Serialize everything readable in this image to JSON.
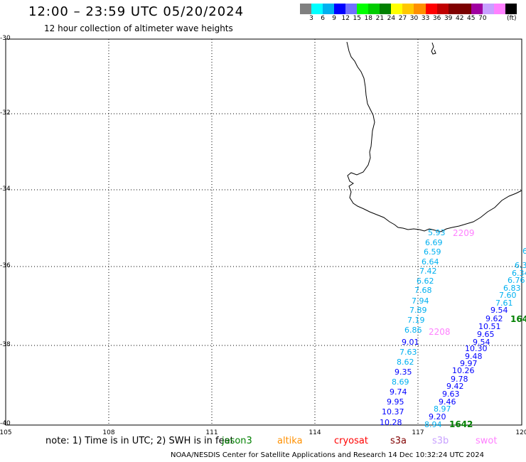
{
  "header": {
    "title": "12:00 – 23:59 UTC 05/20/2024",
    "subtitle": "12 hour collection of altimeter wave heights"
  },
  "colorbar": {
    "colors": [
      "#808080",
      "#00ffff",
      "#00b0f0",
      "#0000ff",
      "#7070ff",
      "#00ff00",
      "#00cc00",
      "#008000",
      "#ffff00",
      "#ffc800",
      "#ff9000",
      "#ff0000",
      "#c00000",
      "#800000",
      "#7a0000",
      "#a000a0",
      "#c8a0ff",
      "#ff80ff",
      "#000000"
    ],
    "ticks": [
      "3",
      "6",
      "9",
      "12",
      "15",
      "18",
      "21",
      "24",
      "27",
      "30",
      "33",
      "36",
      "39",
      "42",
      "45",
      "70"
    ],
    "unit": "(ft)"
  },
  "axes": {
    "lat_labels": [
      "-30",
      "-32",
      "-34",
      "-36",
      "-38",
      "-40"
    ],
    "lon_labels": [
      "105",
      "108",
      "111",
      "114",
      "117",
      "120"
    ]
  },
  "tracks": {
    "time_labels": [
      {
        "text": "2209",
        "color": "#ff80ff"
      },
      {
        "text": "2208",
        "color": "#ff80ff"
      },
      {
        "text": "1642",
        "color": "#008000"
      },
      {
        "text": "164",
        "color": "#008000"
      }
    ],
    "track_a": {
      "values": [
        "5.93",
        "6.69",
        "6.59",
        "6.64",
        "7.42",
        "6.62",
        "7.68",
        "7.94",
        "7.89",
        "7.19",
        "6.86",
        "9.01",
        "7.63",
        "8.62",
        "9.35",
        "8.69",
        "9.74",
        "9.95",
        "10.37",
        "10.28"
      ],
      "colors": [
        "#00b0f0",
        "#00b0f0",
        "#00b0f0",
        "#00b0f0",
        "#00b0f0",
        "#00b0f0",
        "#00b0f0",
        "#00b0f0",
        "#00b0f0",
        "#00b0f0",
        "#00b0f0",
        "#0000ff",
        "#00b0f0",
        "#00b0f0",
        "#0000ff",
        "#00b0f0",
        "#0000ff",
        "#0000ff",
        "#0000ff",
        "#0000ff"
      ]
    },
    "track_b": {
      "values": [
        "8.94",
        "9.20",
        "8.97",
        "9.46",
        "9.63",
        "9.42",
        "9.78",
        "10.26",
        "9.97",
        "9.48",
        "10.30",
        "9.54",
        "9.65",
        "10.51",
        "9.62",
        "9.54",
        "7.61",
        "7.60",
        "6.83",
        "6.76",
        "6.34",
        "6.3",
        "6"
      ],
      "colors": [
        "#00b0f0",
        "#0000ff",
        "#00b0f0",
        "#0000ff",
        "#0000ff",
        "#0000ff",
        "#0000ff",
        "#0000ff",
        "#0000ff",
        "#0000ff",
        "#0000ff",
        "#0000ff",
        "#0000ff",
        "#0000ff",
        "#0000ff",
        "#0000ff",
        "#00b0f0",
        "#00b0f0",
        "#00b0f0",
        "#00b0f0",
        "#00b0f0",
        "#00b0f0",
        "#00b0f0"
      ]
    }
  },
  "footer": {
    "note": "note:  1) Time is in UTC;  2) SWH is in feet",
    "missions": [
      {
        "name": "jason3",
        "color": "#008000"
      },
      {
        "name": "altika",
        "color": "#ff9000"
      },
      {
        "name": "cryosat",
        "color": "#ff0000"
      },
      {
        "name": "s3a",
        "color": "#800000"
      },
      {
        "name": "s3b",
        "color": "#c8a0ff"
      },
      {
        "name": "swot",
        "color": "#ff80ff"
      }
    ],
    "credit": "NOAA/NESDIS Center for Satellite Applications and Research    14 Dec 10:32:24 UTC 2024"
  }
}
